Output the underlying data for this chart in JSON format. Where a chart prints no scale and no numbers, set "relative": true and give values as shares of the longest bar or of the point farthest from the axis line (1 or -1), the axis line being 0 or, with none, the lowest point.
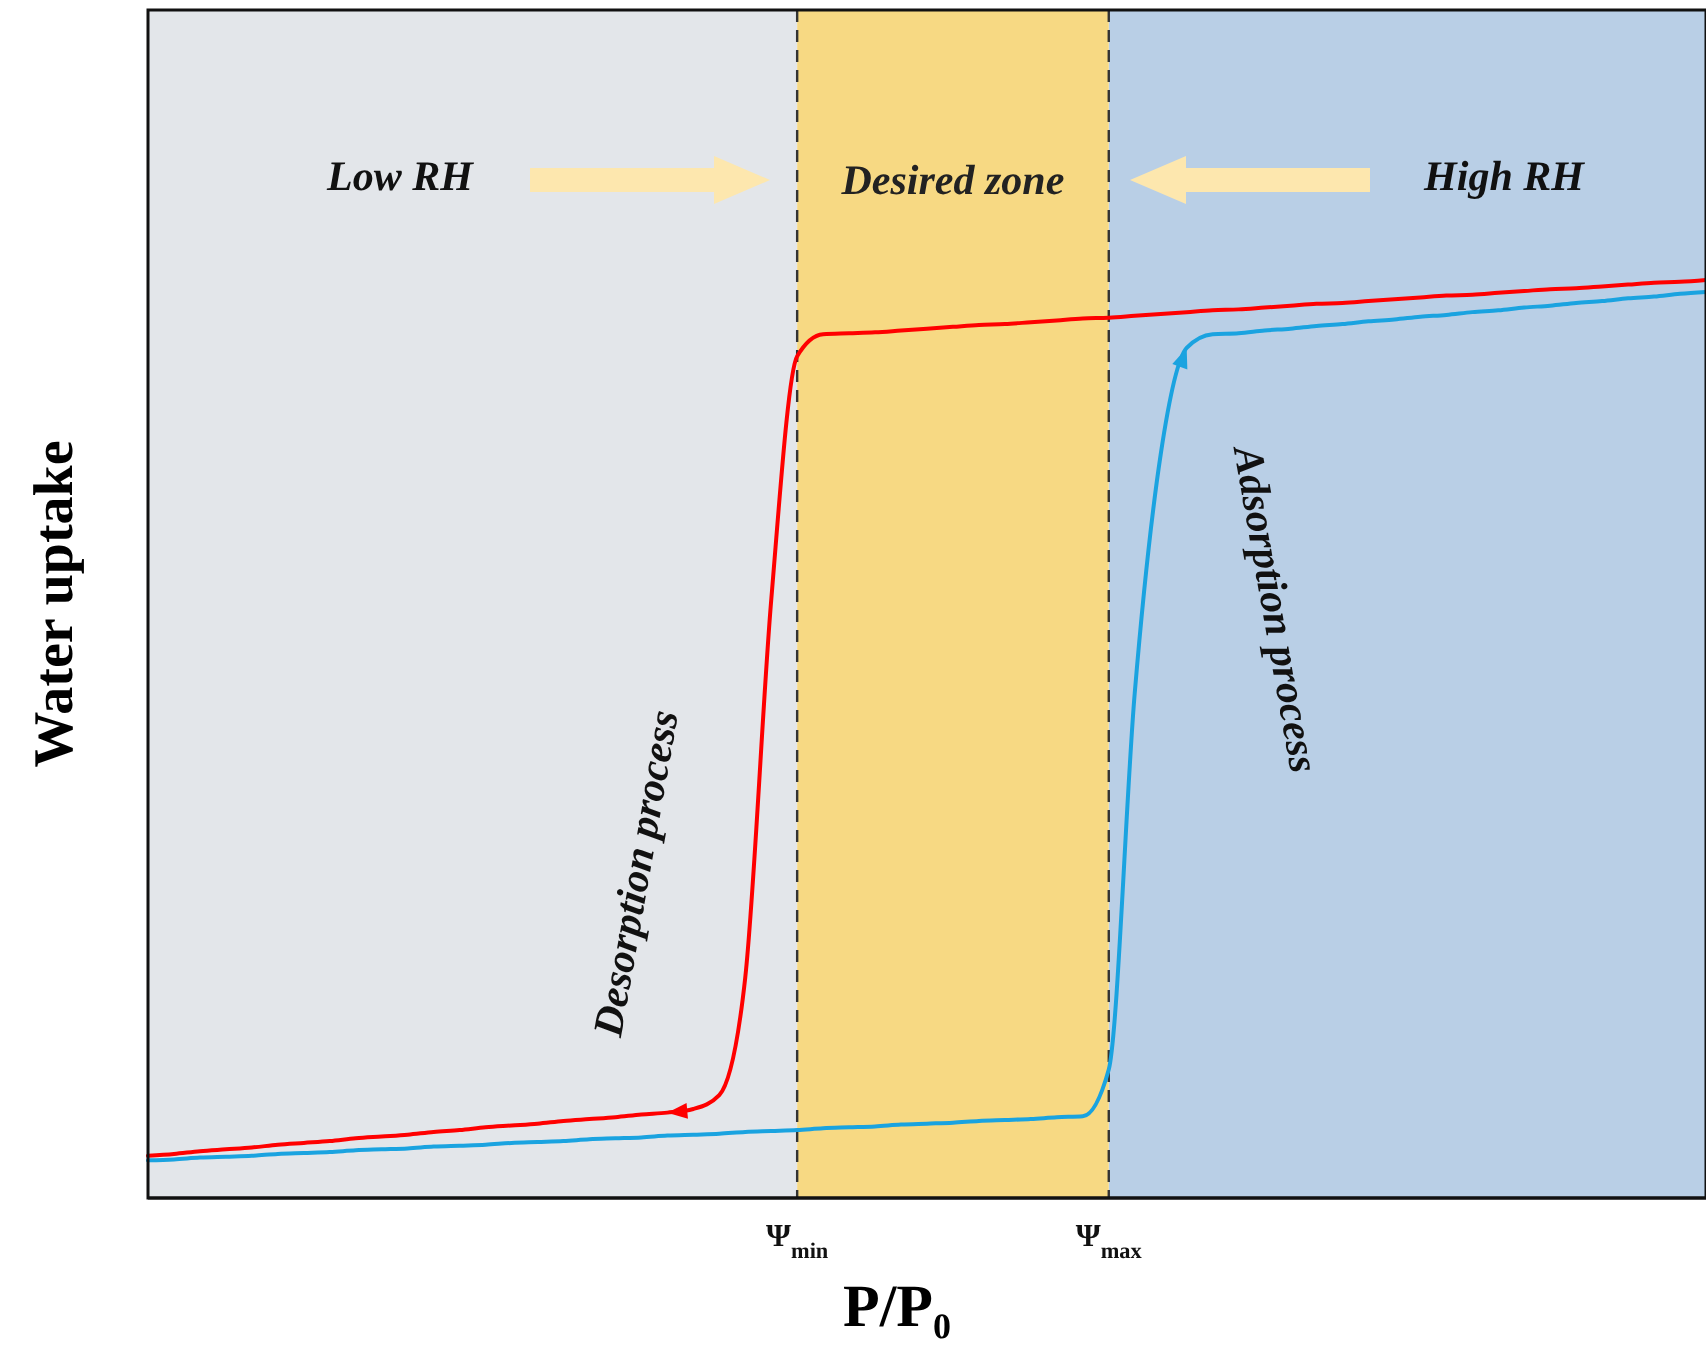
{
  "chart_data": {
    "type": "line",
    "relative": true,
    "xlabel": "P/P₀",
    "ylabel": "Water uptake",
    "categories": [
      null,
      null,
      null,
      null,
      null,
      null,
      null,
      null,
      null,
      null,
      null,
      null,
      null,
      null,
      null,
      null,
      null,
      null,
      null,
      null,
      null,
      null,
      null,
      null,
      null,
      "Ψ$_{min}$",
      null,
      null,
      null,
      null,
      null,
      null,
      null,
      null,
      null,
      null,
      null,
      "Ψ$_{max}$",
      null,
      null,
      null,
      null,
      null,
      null,
      null,
      null,
      null,
      null,
      null,
      null,
      null,
      null,
      null,
      null,
      null,
      null,
      null,
      null,
      null,
      null,
      null
    ],
    "series": [
      {
        "color": "#ff0000",
        "values": [
          0.046,
          0.048,
          0.051,
          0.053,
          0.055,
          0.058,
          0.06,
          0.062,
          0.065,
          0.067,
          0.069,
          0.072,
          0.074,
          0.077,
          0.079,
          0.081,
          0.084,
          0.086,
          0.088,
          0.091,
          0.093,
          0.097,
          0.112,
          0.24,
          0.651,
          0.917,
          0.941,
          0.942,
          0.943,
          0.945,
          0.947,
          0.949,
          0.951,
          0.952,
          0.954,
          0.956,
          0.958,
          0.959,
          0.961,
          0.963,
          0.965,
          0.967,
          0.968,
          0.97,
          0.972,
          0.974,
          0.975,
          0.977,
          0.979,
          0.981,
          0.983,
          0.984,
          0.986,
          0.988,
          0.99,
          0.991,
          0.993,
          0.995,
          0.997,
          0.998,
          1.0
        ]
      },
      {
        "color": "#1aa3e0",
        "values": [
          0.041,
          0.042,
          0.044,
          0.045,
          0.046,
          0.048,
          0.049,
          0.05,
          0.052,
          0.053,
          0.054,
          0.056,
          0.057,
          0.058,
          0.06,
          0.061,
          0.062,
          0.064,
          0.065,
          0.066,
          0.068,
          0.069,
          0.07,
          0.072,
          0.073,
          0.074,
          0.076,
          0.077,
          0.078,
          0.08,
          0.081,
          0.082,
          0.084,
          0.085,
          0.086,
          0.088,
          0.089,
          0.14,
          0.55,
          0.81,
          0.926,
          0.941,
          0.942,
          0.945,
          0.947,
          0.95,
          0.952,
          0.955,
          0.957,
          0.96,
          0.962,
          0.965,
          0.967,
          0.97,
          0.972,
          0.975,
          0.977,
          0.98,
          0.982,
          0.985,
          0.987
        ]
      }
    ],
    "bands": [
      {
        "axis": "x",
        "from": "Ψ$_{min}$",
        "to": "Ψ$_{max}$",
        "label": "Desired zone",
        "color": "#f7d983"
      }
    ],
    "ref_lines": [
      {
        "axis": "x",
        "value": "Ψ$_{min}$",
        "color": "#333333",
        "line_style": "dashed"
      },
      {
        "axis": "x",
        "value": "Ψ$_{max}$",
        "color": "#333333",
        "line_style": "dashed"
      }
    ],
    "annotations": [
      "Desorption process",
      "Adsorption process",
      "Low RH",
      "High RH"
    ]
  }
}
